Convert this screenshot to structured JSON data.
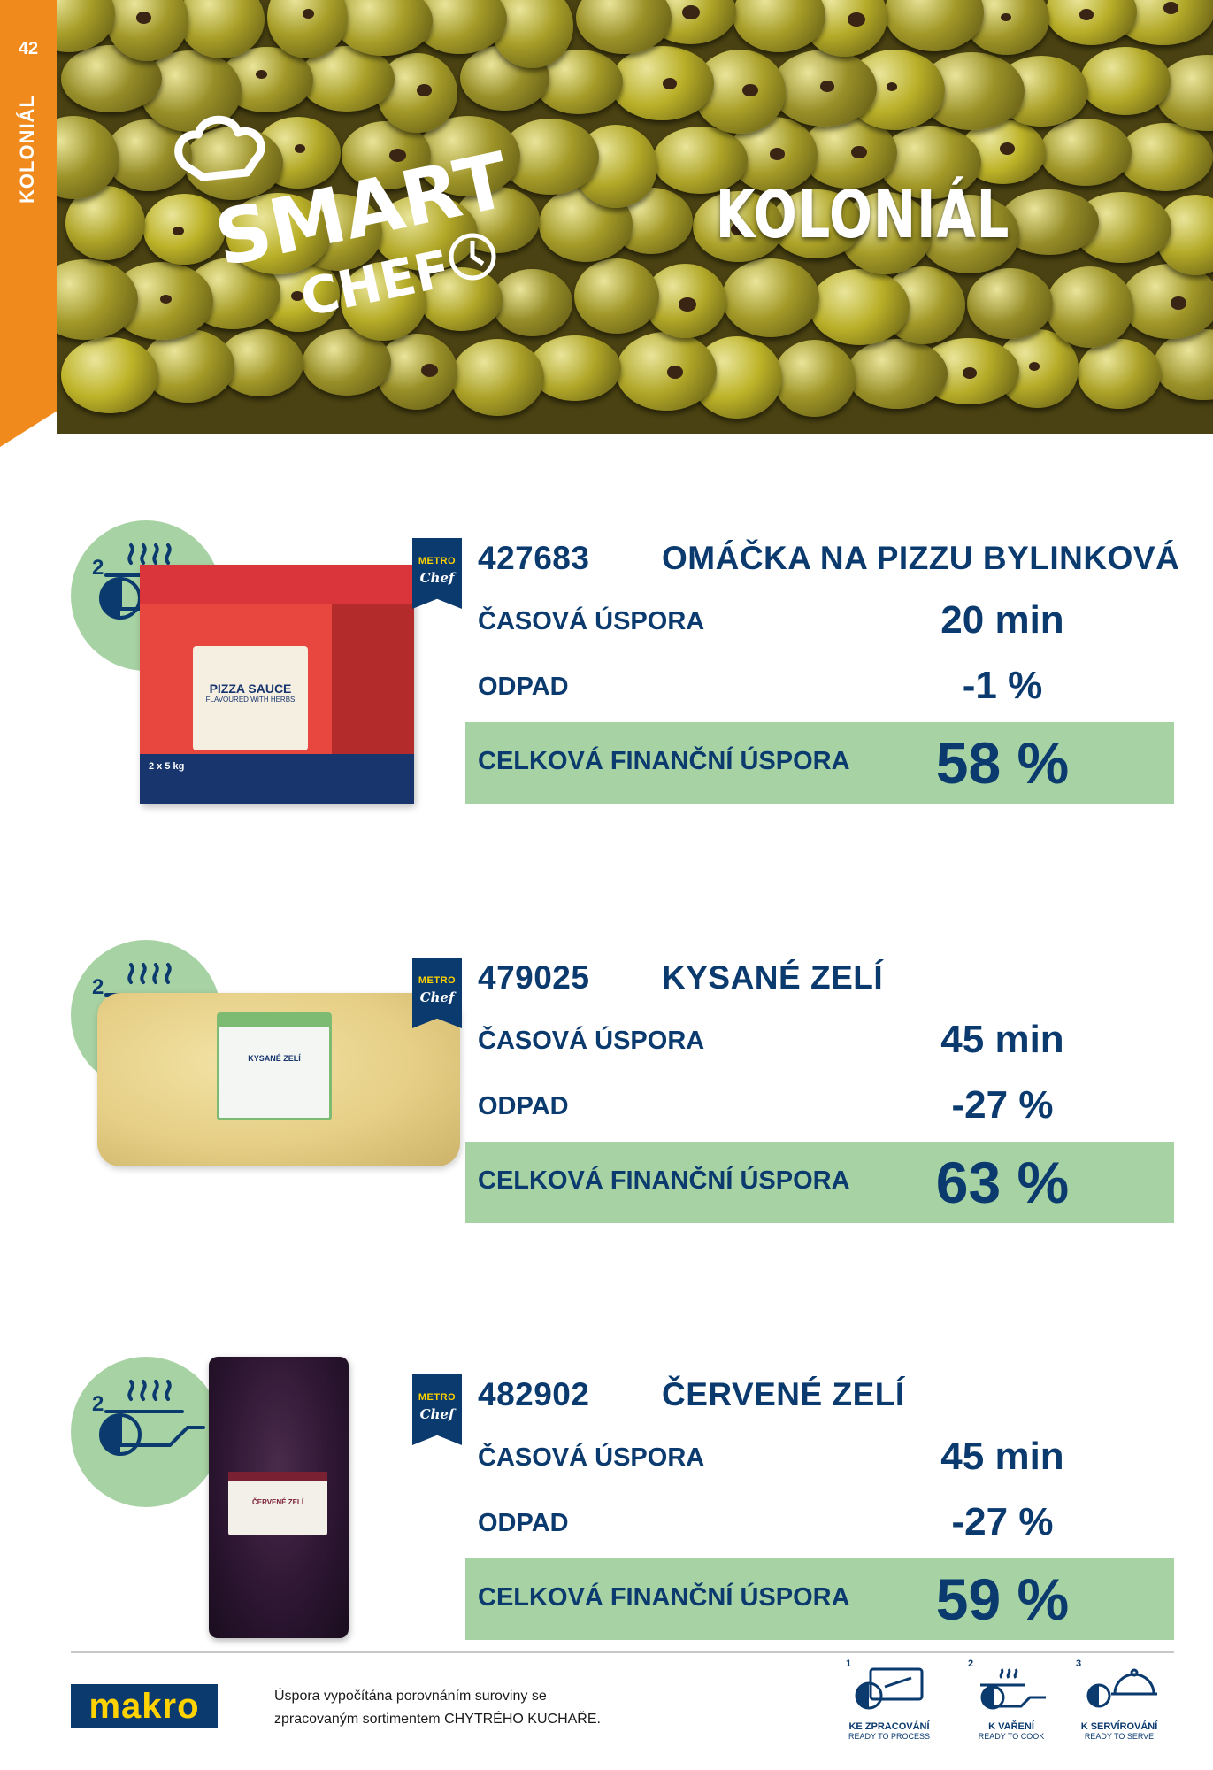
{
  "page": {
    "number": "42",
    "section": "KOLONIÁL"
  },
  "hero": {
    "logo_smart": "SMART",
    "logo_chef": "CHEF",
    "title": "KOLONIÁL"
  },
  "labels": {
    "time_saving": "ČASOVÁ ÚSPORA",
    "waste": "ODPAD",
    "total_saving": "CELKOVÁ FINANČNÍ ÚSPORA",
    "badge_top": "METRO",
    "badge_bottom": "Chef",
    "stage_number": "2"
  },
  "products": [
    {
      "code": "427683",
      "name": "OMÁČKA NA PIZZU BYLINKOVÁ",
      "time": "20 min",
      "waste": "-1 %",
      "total": "58 %",
      "package_text": "PIZZA SAUCE",
      "package_sub": "FLAVOURED WITH HERBS",
      "package_qty": "2 x 5 kg"
    },
    {
      "code": "479025",
      "name": "KYSANÉ ZELÍ",
      "time": "45 min",
      "waste": "-27 %",
      "total": "63 %",
      "package_text": "KYSANÉ ZELÍ"
    },
    {
      "code": "482902",
      "name": "ČERVENÉ ZELÍ",
      "time": "45 min",
      "waste": "-27 %",
      "total": "59 %",
      "package_text": "ČERVENÉ ZELÍ"
    }
  ],
  "footer": {
    "brand": "makro",
    "note_line1": "Úspora vypočítána porovnáním suroviny se",
    "note_line2": "zpracovaným sortimentem CHYTRÉHO KUCHAŘE.",
    "legend": [
      {
        "num": "1",
        "cz": "KE ZPRACOVÁNÍ",
        "en": "READY TO PROCESS",
        "icon": "knife-board-icon"
      },
      {
        "num": "2",
        "cz": "K VAŘENÍ",
        "en": "READY TO COOK",
        "icon": "pan-steam-icon"
      },
      {
        "num": "3",
        "cz": "K SERVÍROVÁNÍ",
        "en": "READY TO SERVE",
        "icon": "cloche-icon"
      }
    ]
  },
  "colors": {
    "orange": "#f08a1c",
    "navy": "#0b3a6e",
    "green": "#a7d2a3",
    "yellow": "#ffd200"
  }
}
